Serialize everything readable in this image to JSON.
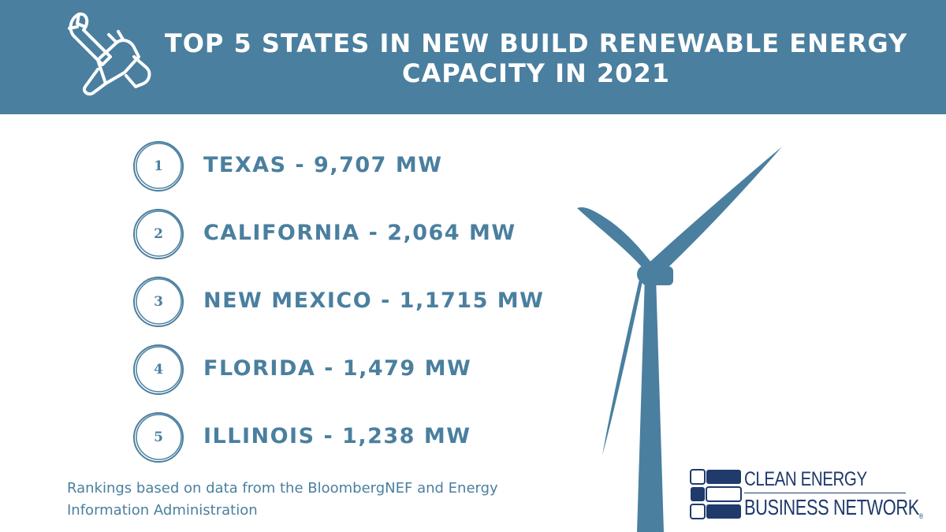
{
  "header": {
    "title_line1": "TOP 5 STATES IN NEW BUILD RENEWABLE ENERGY",
    "title_line2": "CAPACITY IN 2021",
    "icon": "wrench-hand-icon",
    "background": "#4a7f9f"
  },
  "rankings": [
    {
      "rank": "1",
      "text": "TEXAS - 9,707 MW"
    },
    {
      "rank": "2",
      "text": "CALIFORNIA - 2,064 MW"
    },
    {
      "rank": "3",
      "text": "NEW MEXICO - 1,1715 MW"
    },
    {
      "rank": "4",
      "text": "FLORIDA - 1,479 MW"
    },
    {
      "rank": "5",
      "text": "ILLINOIS - 1,238 MW"
    }
  ],
  "footnote": {
    "line1": "Rankings based on data from the BloombergNEF and Energy",
    "line2": "Information Administration"
  },
  "illustration": {
    "icon": "wind-turbine-icon",
    "color": "#4a7f9f"
  },
  "logo": {
    "line1": "CLEAN ENERGY",
    "line2": "BUSINESS NETWORK",
    "mark": "®",
    "color": "#1f3a6b"
  }
}
